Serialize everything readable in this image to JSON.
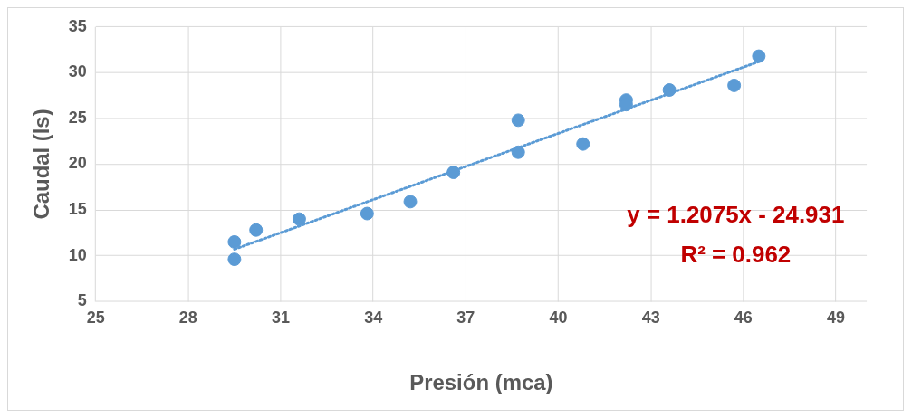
{
  "chart_data": {
    "type": "scatter",
    "xlabel": "Presión (mca)",
    "ylabel": "Caudal (ls)",
    "xlim": [
      25,
      50
    ],
    "xticks": [
      25,
      28,
      31,
      34,
      37,
      40,
      43,
      46,
      49
    ],
    "ylim": [
      5,
      35
    ],
    "yticks": [
      5,
      10,
      15,
      20,
      25,
      30,
      35
    ],
    "grid": true,
    "series": [
      {
        "type": "scatter",
        "marker": "circle",
        "color": "#5b9bd5",
        "x": [
          29.5,
          29.5,
          30.2,
          31.6,
          33.8,
          35.2,
          36.6,
          38.7,
          38.7,
          40.8,
          42.2,
          42.2,
          43.6,
          45.7,
          46.5
        ],
        "values": [
          11.5,
          9.6,
          12.8,
          14.0,
          14.6,
          15.9,
          19.1,
          24.8,
          21.3,
          22.2,
          27.0,
          26.5,
          28.1,
          28.6,
          31.8
        ]
      },
      {
        "type": "line",
        "marker": "none",
        "color": "#5b9bd5",
        "line_style": "dotted",
        "x": [
          29.5,
          46.5
        ],
        "values": [
          10.7,
          31.2
        ]
      }
    ],
    "annotations": [
      "y = 1.2075x - 24.931",
      "R² = 0.962"
    ]
  }
}
